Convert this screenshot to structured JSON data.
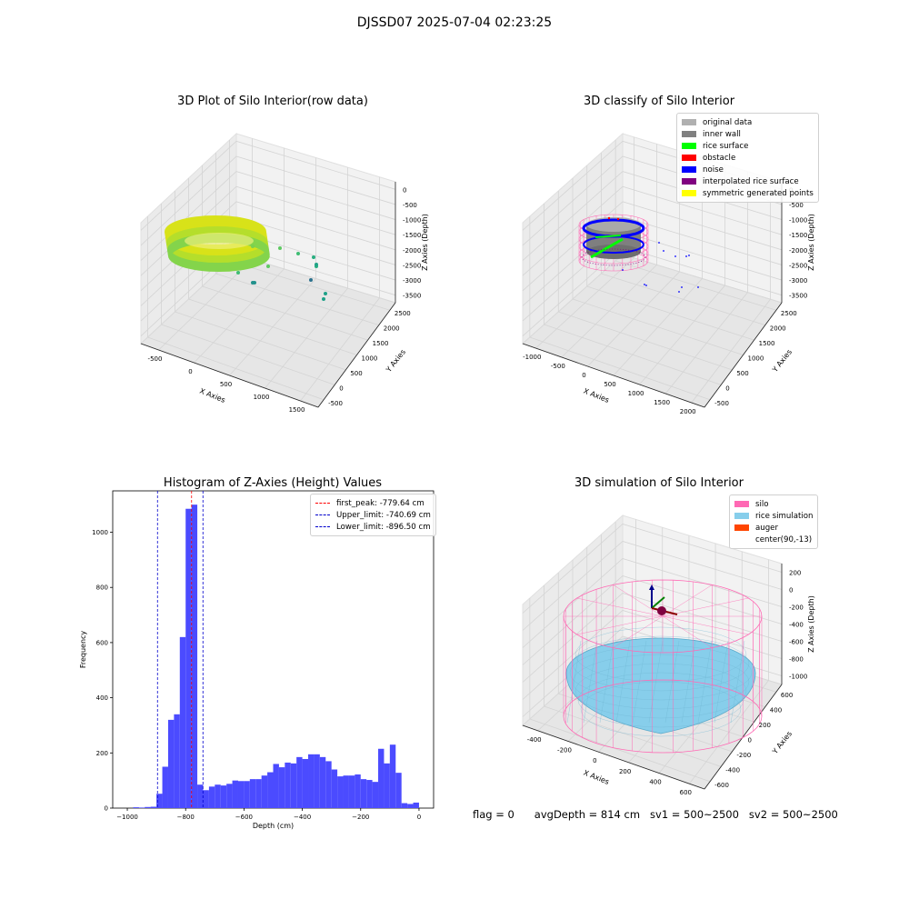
{
  "suptitle": "DJSSD07 2025-07-04 02:23:25",
  "footer": {
    "flag": "flag = 0",
    "avg": "avgDepth = 814 cm",
    "sv1": "sv1 = 500~2500",
    "sv2": "sv2 = 500~2500"
  },
  "colors": {
    "bar": "#4b4bff",
    "first_peak": "#ff0000",
    "limits": "#0000cc",
    "silo": "#ff69b4",
    "rice_sim": "#87ceeb",
    "auger": "#ff4500"
  },
  "plot3d_raw": {
    "title": "3D Plot of Silo Interior(row data)",
    "xlabel": "X Axies",
    "ylabel": "Y Axies",
    "zlabel": "Z Axies (Depth)",
    "xticks": [
      "-500",
      "0",
      "500",
      "1000",
      "1500"
    ],
    "yticks": [
      "-500",
      "0",
      "500",
      "1000",
      "1500",
      "2000",
      "2500"
    ],
    "zticks": [
      "0",
      "-500",
      "-1000",
      "-1500",
      "-2000",
      "-2500",
      "-3000",
      "-3500"
    ]
  },
  "plot3d_classify": {
    "title": "3D classify of Silo Interior",
    "xlabel": "X Axies",
    "ylabel": "Y Axies",
    "zlabel": "Z Axies (Depth)",
    "xticks": [
      "-1000",
      "-500",
      "0",
      "500",
      "1000",
      "1500",
      "2000"
    ],
    "yticks": [
      "-500",
      "0",
      "500",
      "1000",
      "1500",
      "2000",
      "2500"
    ],
    "zticks": [
      "0",
      "-500",
      "-1000",
      "-1500",
      "-2000",
      "-2500",
      "-3000",
      "-3500"
    ],
    "legend": [
      {
        "label": "original data",
        "color": "#b0b0b0"
      },
      {
        "label": "inner wall",
        "color": "#808080"
      },
      {
        "label": "rice surface",
        "color": "#00ff00"
      },
      {
        "label": "obstacle",
        "color": "#ff0000"
      },
      {
        "label": "noise",
        "color": "#0000ff"
      },
      {
        "label": "interpolated rice surface",
        "color": "#800080"
      },
      {
        "label": "symmetric generated points",
        "color": "#ffff00"
      }
    ]
  },
  "plot3d_sim": {
    "title": "3D simulation of Silo Interior",
    "xlabel": "X Axies",
    "ylabel": "Y Axies",
    "zlabel": "Z Axies (Depth)",
    "xticks": [
      "-400",
      "-200",
      "0",
      "200",
      "400",
      "600"
    ],
    "yticks": [
      "-600",
      "-400",
      "-200",
      "0",
      "200",
      "400",
      "600"
    ],
    "zticks": [
      "200",
      "0",
      "-200",
      "-400",
      "-600",
      "-800",
      "-1000"
    ],
    "legend": [
      {
        "label": "silo",
        "color": "#ff69b4"
      },
      {
        "label": "rice simulation",
        "color": "#87ceeb"
      },
      {
        "label": "auger",
        "color": "#ff4500"
      },
      {
        "label": "center(90,-13)",
        "color": ""
      }
    ]
  },
  "chart_data": [
    {
      "type": "bar",
      "title": "Histogram of Z-Axies (Height) Values",
      "xlabel": "Depth (cm)",
      "ylabel": "Frequency",
      "xlim": [
        -1050,
        50
      ],
      "ylim": [
        0,
        1150
      ],
      "xticks": [
        -1000,
        -800,
        -600,
        -400,
        -200,
        0
      ],
      "yticks": [
        0,
        200,
        400,
        600,
        800,
        1000
      ],
      "bin_width": 20,
      "bins": [
        [
          -980,
          3
        ],
        [
          -960,
          2
        ],
        [
          -940,
          4
        ],
        [
          -920,
          5
        ],
        [
          -900,
          52
        ],
        [
          -880,
          150
        ],
        [
          -860,
          320
        ],
        [
          -840,
          340
        ],
        [
          -820,
          620
        ],
        [
          -800,
          1085
        ],
        [
          -780,
          1100
        ],
        [
          -760,
          85
        ],
        [
          -740,
          65
        ],
        [
          -720,
          78
        ],
        [
          -700,
          85
        ],
        [
          -680,
          82
        ],
        [
          -660,
          88
        ],
        [
          -640,
          100
        ],
        [
          -620,
          98
        ],
        [
          -600,
          98
        ],
        [
          -580,
          105
        ],
        [
          -560,
          105
        ],
        [
          -540,
          118
        ],
        [
          -520,
          130
        ],
        [
          -500,
          160
        ],
        [
          -480,
          148
        ],
        [
          -460,
          165
        ],
        [
          -440,
          162
        ],
        [
          -420,
          185
        ],
        [
          -400,
          178
        ],
        [
          -380,
          195
        ],
        [
          -360,
          195
        ],
        [
          -340,
          185
        ],
        [
          -320,
          170
        ],
        [
          -300,
          140
        ],
        [
          -280,
          115
        ],
        [
          -260,
          118
        ],
        [
          -240,
          118
        ],
        [
          -220,
          122
        ],
        [
          -200,
          105
        ],
        [
          -180,
          102
        ],
        [
          -160,
          95
        ],
        [
          -140,
          215
        ],
        [
          -120,
          162
        ],
        [
          -100,
          230
        ],
        [
          -80,
          128
        ],
        [
          -60,
          18
        ],
        [
          -40,
          15
        ],
        [
          -20,
          20
        ]
      ],
      "vlines": [
        {
          "label": "first_peak: -779.64 cm",
          "x": -779.64,
          "color": "#ff0000"
        },
        {
          "label": "Upper_limit: -740.69 cm",
          "x": -740.69,
          "color": "#0000cc"
        },
        {
          "label": "Lower_limit: -896.50 cm",
          "x": -896.5,
          "color": "#0000cc"
        }
      ],
      "legend_position": "top-right"
    }
  ]
}
